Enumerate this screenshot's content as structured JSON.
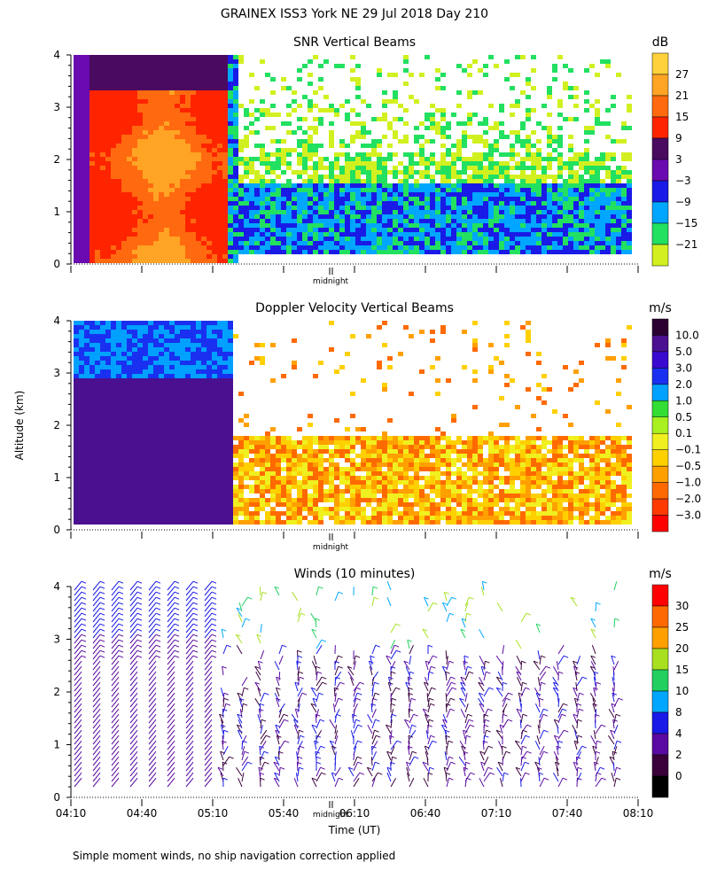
{
  "figure": {
    "title": "GRAINEX ISS3 York NE  29 Jul 2018 Day 210",
    "ylabel": "Altitude (km)",
    "xlabel": "Time (UT)",
    "midnight_label": "midnight",
    "footnote": "Simple moment winds, no ship navigation correction applied"
  },
  "chart_data": [
    {
      "type": "heatmap",
      "title": "SNR Vertical Beams",
      "ylim": [
        0,
        4
      ],
      "y_ticks": [
        "0",
        "1",
        "2",
        "3",
        "4"
      ],
      "colorbar": {
        "unit": "dB",
        "labels": [
          "27",
          "21",
          "15",
          "9",
          "3",
          "−3",
          "−9",
          "−15",
          "−21"
        ],
        "colors": [
          "#ffd23c",
          "#ffa424",
          "#ff6a10",
          "#ff2400",
          "#4a0a60",
          "#6a0ab0",
          "#1a1ae6",
          "#00a6ff",
          "#22e060",
          "#d2f020"
        ]
      }
    },
    {
      "type": "heatmap",
      "title": "Doppler Velocity Vertical Beams",
      "ylim": [
        0,
        4
      ],
      "y_ticks": [
        "0",
        "1",
        "2",
        "3",
        "4"
      ],
      "colorbar": {
        "unit": "m/s",
        "labels": [
          "10.0",
          "5.0",
          "3.0",
          "2.0",
          "1.0",
          "0.5",
          "0.1",
          "−0.1",
          "−0.5",
          "−1.0",
          "−2.0",
          "−3.0"
        ],
        "colors": [
          "#2a0030",
          "#4a1090",
          "#3a0ad0",
          "#1a30f0",
          "#00a0ff",
          "#33dd33",
          "#a8f020",
          "#f0f020",
          "#ffd000",
          "#ffa000",
          "#ff6a00",
          "#ff3a00",
          "#ff0000"
        ]
      }
    },
    {
      "type": "scatter",
      "title": "Winds (10 minutes)",
      "ylim": [
        0,
        4
      ],
      "y_ticks": [
        "0",
        "1",
        "2",
        "3",
        "4"
      ],
      "x_ticks": [
        "04:10",
        "04:40",
        "05:10",
        "05:40",
        "06:10",
        "06:40",
        "07:10",
        "07:40",
        "08:10"
      ],
      "colorbar": {
        "unit": "m/s",
        "labels": [
          "30",
          "25",
          "20",
          "15",
          "10",
          "8",
          "4",
          "2",
          "0"
        ],
        "colors": [
          "#ff0000",
          "#ff6a00",
          "#ffa000",
          "#a8e020",
          "#22d060",
          "#00a6ff",
          "#1a1ae6",
          "#5a0aa0",
          "#3a003a",
          "#000000"
        ]
      }
    }
  ]
}
